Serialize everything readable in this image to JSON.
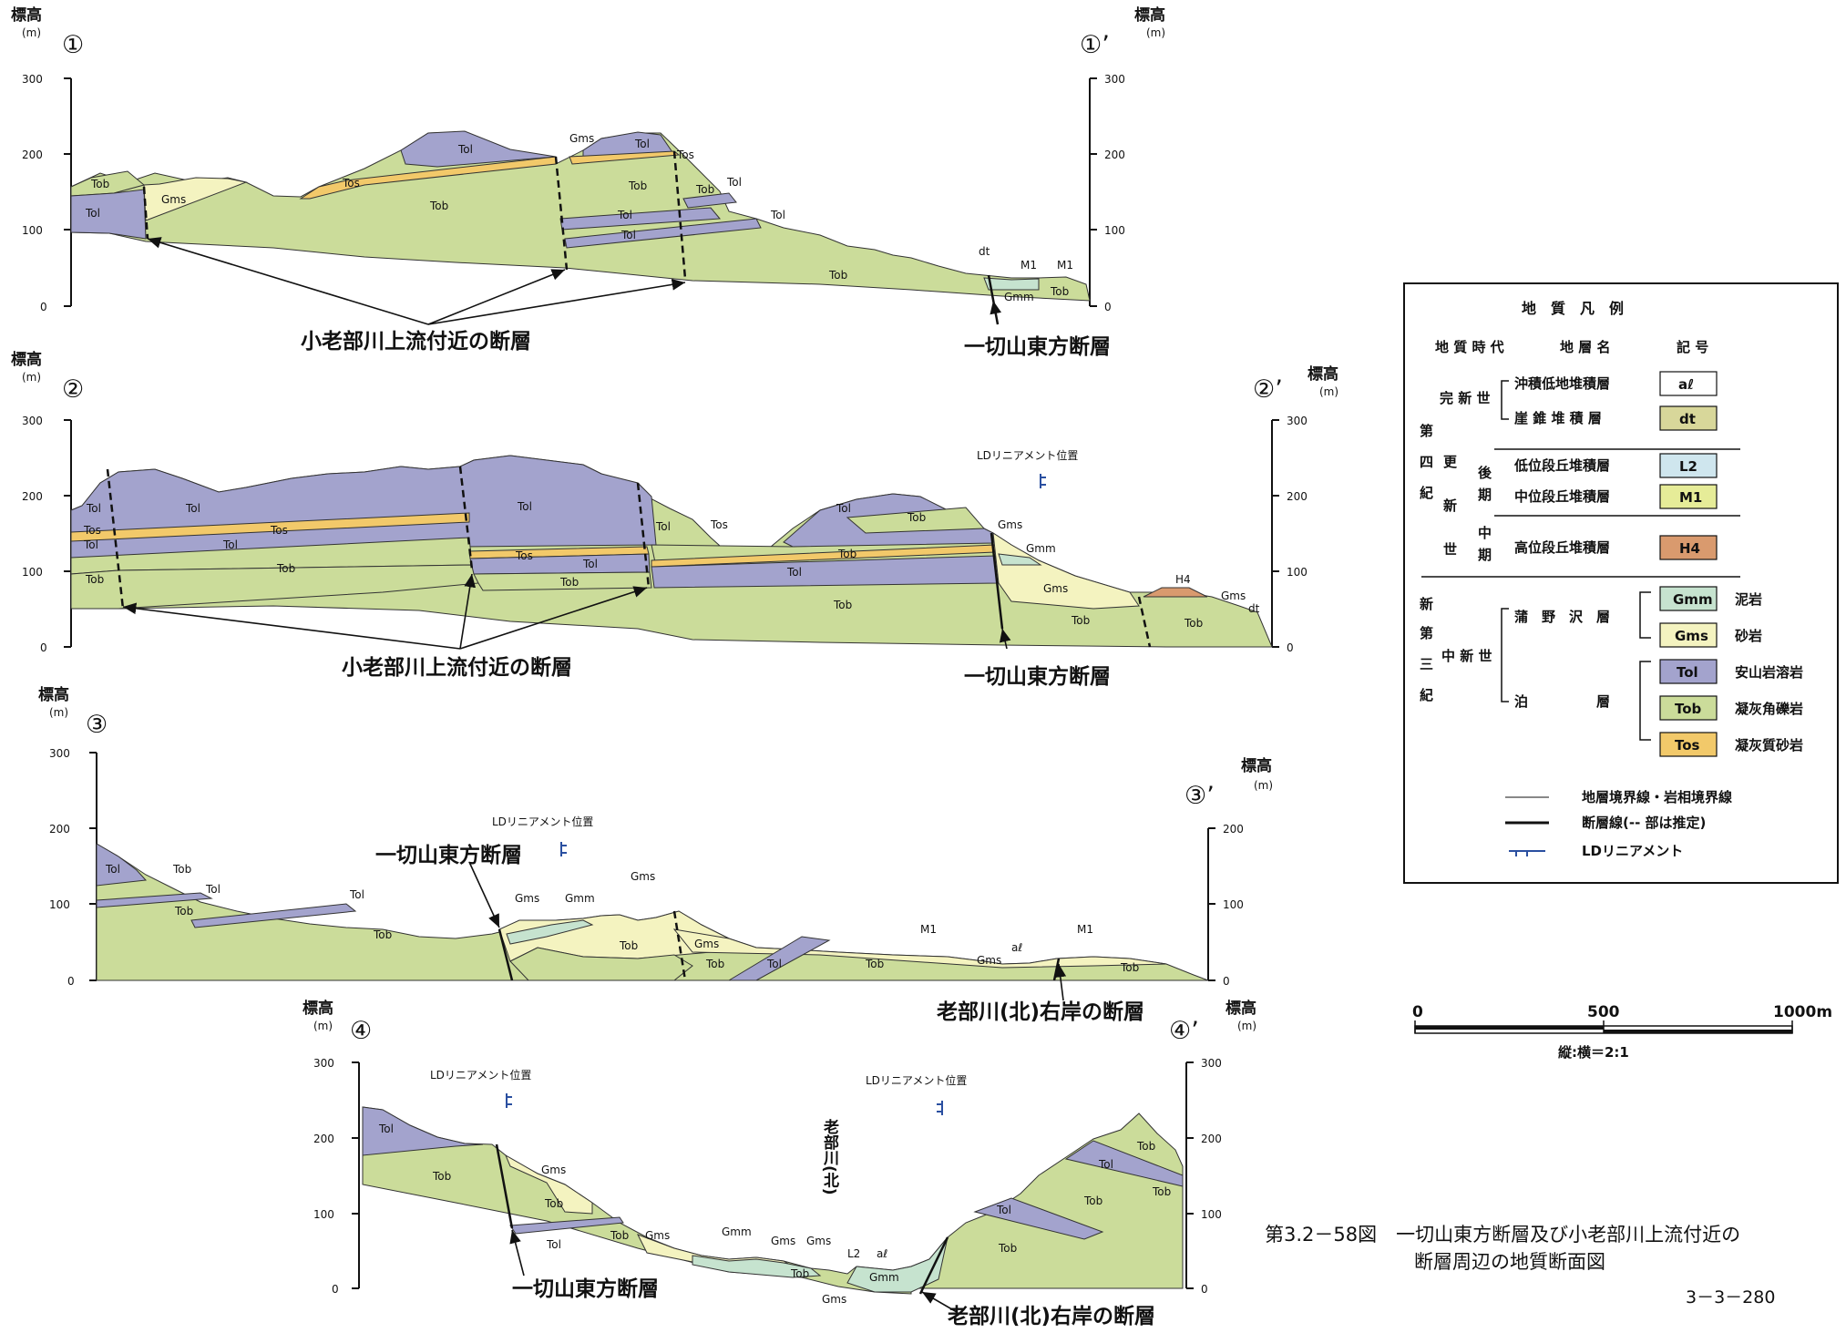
{
  "axis": {
    "elev_title": "標高",
    "elev_unit": "(m)",
    "ticks_300": [
      "0",
      "100",
      "200",
      "300"
    ],
    "ticks_200": [
      "0",
      "100",
      "200"
    ]
  },
  "sections": [
    {
      "id": "1",
      "start_marker": "①",
      "end_marker": "①’",
      "fault_labels": [
        "小老部川上流付近の断層",
        "一切山東方断層"
      ],
      "unit_labels": [
        "Tob",
        "Tol",
        "Gms",
        "Tos",
        "Tol",
        "Gms",
        "Tol",
        "Tos",
        "Tob",
        "Tol",
        "Tol",
        "Tob",
        "Tob",
        "Tol",
        "Tol",
        "Tob",
        "dt",
        "M1",
        "M1",
        "Gmm",
        "Tob"
      ]
    },
    {
      "id": "2",
      "start_marker": "②",
      "end_marker": "②’",
      "lineament": "LDリニアメント位置",
      "fault_labels": [
        "小老部川上流付近の断層",
        "一切山東方断層"
      ],
      "unit_labels": [
        "Tol",
        "Tol",
        "Tos",
        "Tol",
        "Tob",
        "Tos",
        "Tol",
        "Tob",
        "Tol",
        "Tos",
        "Tol",
        "Tob",
        "Tol",
        "Tos",
        "Tol",
        "Tob",
        "Tol",
        "Tob",
        "Tob",
        "Gms",
        "Gmm",
        "Gms",
        "Tob",
        "H4",
        "Gms",
        "dt",
        "Tob"
      ]
    },
    {
      "id": "3",
      "start_marker": "③",
      "end_marker": "③’",
      "lineament": "LDリニアメント位置",
      "fault_labels": [
        "一切山東方断層",
        "老部川(北)右岸の断層"
      ],
      "unit_labels": [
        "Tol",
        "Tob",
        "Tol",
        "Tob",
        "Tol",
        "Tob",
        "Gms",
        "Gmm",
        "Gms",
        "Tob",
        "Gms",
        "Tob",
        "Tol",
        "Tob",
        "M1",
        "aℓ",
        "Gms",
        "M1",
        "Tob"
      ]
    },
    {
      "id": "4",
      "start_marker": "④",
      "end_marker": "④’",
      "lineament_left": "LDリニアメント位置",
      "lineament_right": "LDリニアメント位置",
      "river": "老部川(北)",
      "fault_labels": [
        "一切山東方断層",
        "老部川(北)右岸の断層"
      ],
      "unit_labels": [
        "Tol",
        "Tob",
        "Gms",
        "Tob",
        "Tol",
        "Tob",
        "Gms",
        "Gmm",
        "Gms",
        "Gms",
        "Tob",
        "L2",
        "aℓ",
        "Gms",
        "Gmm",
        "Tob",
        "Tol",
        "Tob",
        "Tol",
        "Tob",
        "Tob"
      ]
    }
  ],
  "legend": {
    "title": "地　質　凡　例",
    "header": [
      "地 質 時 代",
      "地 層 名",
      "記 号"
    ],
    "era_quaternary": [
      "第",
      "四",
      "紀"
    ],
    "era_neogene": [
      "新",
      "第",
      "三",
      "紀"
    ],
    "epoch_holocene": "完 新 世",
    "epoch_pleistocene": [
      "更",
      "新",
      "世"
    ],
    "sub_late": [
      "後",
      "期"
    ],
    "sub_middle": [
      "中",
      "期"
    ],
    "epoch_miocene": "中 新 世",
    "rows": [
      {
        "name": "沖積低地堆積層",
        "symbol": "aℓ",
        "color": "#ffffff"
      },
      {
        "name": "崖 錐 堆 積 層",
        "symbol": "dt",
        "color": "#d8d79a"
      },
      {
        "name": "低位段丘堆積層",
        "symbol": "L2",
        "color": "#cfe6ee"
      },
      {
        "name": "中位段丘堆積層",
        "symbol": "M1",
        "color": "#e6ec98"
      },
      {
        "name": "高位段丘堆積層",
        "symbol": "H4",
        "color": "#d99a6e"
      }
    ],
    "formation_kanno": "蒲　野　沢　層",
    "formation_tomari": "泊　　　　　層",
    "rock_rows": [
      {
        "symbol": "Gmm",
        "rock": "泥岩",
        "color": "#c6e3cf"
      },
      {
        "symbol": "Gms",
        "rock": "砂岩",
        "color": "#f4f3c0"
      },
      {
        "symbol": "Tol",
        "rock": "安山岩溶岩",
        "color": "#a3a3cd"
      },
      {
        "symbol": "Tob",
        "rock": "凝灰角礫岩",
        "color": "#cbdc9a"
      },
      {
        "symbol": "Tos",
        "rock": "凝灰質砂岩",
        "color": "#f2c96a"
      }
    ],
    "line_boundary": "地層境界線・岩相境界線",
    "line_fault": "断層線(-- 部は推定)",
    "line_lineament": "LDリニアメント"
  },
  "scale": {
    "ticks": [
      "0",
      "500",
      "1000m"
    ],
    "ratio": "縦:横＝2:1"
  },
  "caption": {
    "line1": "第3.2－58図　一切山東方断層及び小老部川上流付近の",
    "line2": "断層周辺の地質断面図",
    "page": "3－3－280"
  },
  "colors": {
    "Tob": "#cbdc9a",
    "Tol": "#a3a3cd",
    "Tos": "#f2c96a",
    "Gms": "#f4f3c0",
    "Gmm": "#c6e3cf",
    "lineament": "#2a4fa0"
  }
}
